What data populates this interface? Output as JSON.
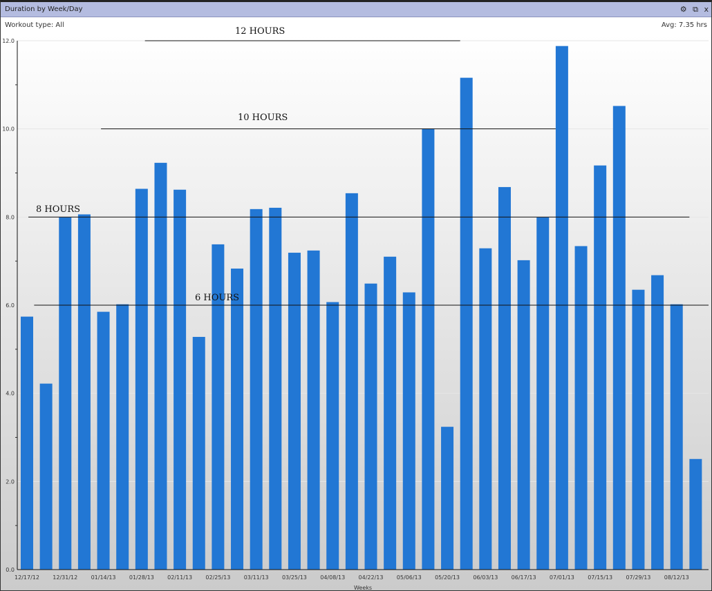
{
  "window": {
    "title": "Duration by Week/Day",
    "controls": [
      "gear-icon",
      "popout-icon",
      "close-icon"
    ],
    "close_label": "x",
    "popout_label": "⧉",
    "gear_label": "⚙"
  },
  "header": {
    "workout_type": "Workout type: All",
    "average": "Avg: 7.35 hrs"
  },
  "chart_data": {
    "type": "bar",
    "title": "Duration by Week/Day",
    "xlabel": "Weeks",
    "ylabel": "",
    "ylim": [
      0,
      12
    ],
    "yticks": [
      "0.0",
      "2.0",
      "4.0",
      "6.0",
      "8.0",
      "10.0",
      "12.0"
    ],
    "x_tick_labels": [
      "12/17/12",
      "12/31/12",
      "01/14/13",
      "01/28/13",
      "02/11/13",
      "02/25/13",
      "03/11/13",
      "03/25/13",
      "04/08/13",
      "04/22/13",
      "05/06/13",
      "05/20/13",
      "06/03/13",
      "06/17/13",
      "07/01/13",
      "07/15/13",
      "07/29/13",
      "08/12/13"
    ],
    "values": [
      5.74,
      4.22,
      7.99,
      8.06,
      5.85,
      6.02,
      8.64,
      9.23,
      8.62,
      5.28,
      7.38,
      6.83,
      8.18,
      8.21,
      7.19,
      7.24,
      6.07,
      8.54,
      6.49,
      7.1,
      6.29,
      10.0,
      3.24,
      11.16,
      7.29,
      8.68,
      7.02,
      7.99,
      11.88,
      7.34,
      9.17,
      10.52,
      6.35,
      6.68,
      6.02,
      2.51
    ],
    "bar_color": "#2277d4",
    "annotations": [
      {
        "label": "12 HOURS",
        "value": 12,
        "from_bar": 6.5,
        "to_bar": 23
      },
      {
        "label": "10 HOURS",
        "value": 10,
        "from_bar": 4.2,
        "to_bar": 28
      },
      {
        "label": "8 HOURS",
        "value": 8,
        "from_bar": 0.4,
        "to_bar": 35
      },
      {
        "label": "6  HOURS",
        "value": 6,
        "from_bar": 0.7,
        "to_bar": 36
      }
    ]
  }
}
